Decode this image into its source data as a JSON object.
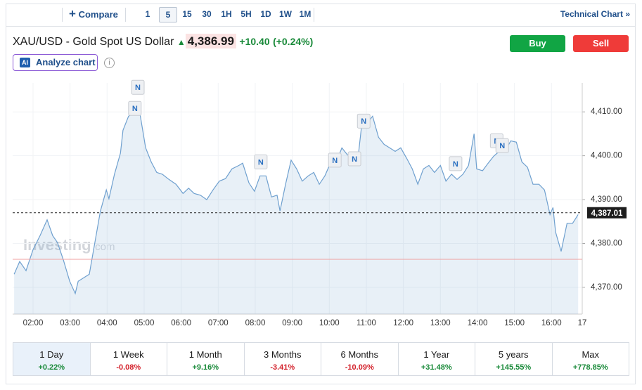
{
  "toolbar": {
    "compare": "Compare",
    "intervals": [
      "1",
      "5",
      "15",
      "30",
      "1H",
      "5H",
      "1D",
      "1W",
      "1M"
    ],
    "selected_interval": "5",
    "technical_chart": "Technical Chart",
    "technical_chart_arrow": "»"
  },
  "header": {
    "title": "XAU/USD - Gold Spot US Dollar",
    "price": "4,386.99",
    "change": "+10.40",
    "change_percent": "(+0.24%)",
    "buy": "Buy",
    "sell": "Sell",
    "ai_badge": "AI",
    "analyze": "Analyze chart",
    "info": "i"
  },
  "chart_data": {
    "type": "area",
    "watermark": "Investing",
    "watermark_suffix": ".com",
    "x": [
      1.49,
      1.64,
      1.81,
      2.0,
      2.19,
      2.38,
      2.53,
      2.66,
      2.82,
      2.99,
      3.14,
      3.22,
      3.37,
      3.52,
      3.67,
      3.82,
      3.98,
      4.05,
      4.2,
      4.36,
      4.43,
      4.58,
      4.73,
      4.89,
      5.04,
      5.19,
      5.34,
      5.49,
      5.67,
      5.86,
      6.05,
      6.2,
      6.35,
      6.52,
      6.69,
      6.86,
      7.03,
      7.2,
      7.37,
      7.56,
      7.66,
      7.83,
      7.98,
      8.13,
      8.29,
      8.44,
      8.59,
      8.67,
      8.82,
      8.97,
      9.12,
      9.27,
      9.43,
      9.58,
      9.73,
      9.88,
      10.03,
      10.19,
      10.34,
      10.49,
      10.64,
      10.79,
      10.87,
      11.02,
      11.17,
      11.33,
      11.48,
      11.63,
      11.78,
      11.93,
      12.09,
      12.24,
      12.39,
      12.54,
      12.69,
      12.84,
      13.0,
      13.15,
      13.3,
      13.45,
      13.61,
      13.76,
      13.91,
      13.98,
      14.14,
      14.29,
      14.44,
      14.59,
      14.74,
      14.9,
      15.05,
      15.2,
      15.35,
      15.5,
      15.66,
      15.81,
      15.96,
      16.04,
      16.11,
      16.26,
      16.42,
      16.57,
      16.72
    ],
    "series": [
      {
        "color": "#6fa0cf",
        "values": [
          4373.0,
          4375.9,
          4373.8,
          4378.6,
          4381.8,
          4385.4,
          4381.8,
          4380.2,
          4376.2,
          4371.4,
          4368.6,
          4371.4,
          4372.2,
          4373.0,
          4380.2,
          4387.4,
          4392.2,
          4390.2,
          4395.8,
          4400.6,
          4405.8,
          4409.0,
          4409.8,
          4409.4,
          4401.8,
          4398.6,
          4396.2,
          4395.8,
          4394.6,
          4393.5,
          4391.4,
          4392.6,
          4391.4,
          4391.0,
          4390.0,
          4392.2,
          4394.2,
          4394.8,
          4397.0,
          4397.8,
          4398.3,
          4393.8,
          4391.9,
          4395.4,
          4395.4,
          4390.6,
          4391.0,
          4387.4,
          4393.5,
          4399.0,
          4397.0,
          4394.2,
          4395.4,
          4396.2,
          4393.5,
          4395.4,
          4398.3,
          4398.6,
          4401.8,
          4400.2,
          4399.4,
          4400.6,
          4406.6,
          4407.4,
          4409.0,
          4404.2,
          4402.6,
          4401.8,
          4401.0,
          4401.8,
          4399.4,
          4397.0,
          4393.5,
          4397.0,
          4397.8,
          4396.2,
          4397.8,
          4394.2,
          4395.8,
          4394.6,
          4395.8,
          4397.8,
          4405.0,
          4397.0,
          4396.6,
          4398.3,
          4399.9,
          4401.0,
          4401.0,
          4403.4,
          4403.1,
          4398.6,
          4397.4,
          4393.5,
          4393.5,
          4392.2,
          4386.6,
          4388.2,
          4382.6,
          4378.2,
          4384.6,
          4384.6,
          4386.6
        ]
      }
    ],
    "xlim": [
      1.45,
      16.83
    ],
    "ylim": [
      4363.9,
      4416.6
    ],
    "xticks": [
      {
        "value": 2,
        "label": "02:00"
      },
      {
        "value": 3,
        "label": "03:00"
      },
      {
        "value": 4,
        "label": "04:00"
      },
      {
        "value": 5,
        "label": "05:00"
      },
      {
        "value": 6,
        "label": "06:00"
      },
      {
        "value": 7,
        "label": "07:00"
      },
      {
        "value": 8,
        "label": "08:00"
      },
      {
        "value": 9,
        "label": "09:00"
      },
      {
        "value": 10,
        "label": "10:00"
      },
      {
        "value": 11,
        "label": "11:00"
      },
      {
        "value": 12,
        "label": "12:00"
      },
      {
        "value": 13,
        "label": "13:00"
      },
      {
        "value": 14,
        "label": "14:00"
      },
      {
        "value": 15,
        "label": "15:00"
      },
      {
        "value": 16,
        "label": "16:00"
      },
      17
    ],
    "yticks": [
      {
        "value": 4370,
        "label": "4,370.00"
      },
      {
        "value": 4380,
        "label": "4,380.00"
      },
      {
        "value": 4390,
        "label": "4,390.00"
      },
      {
        "value": 4400,
        "label": "4,400.00"
      },
      {
        "value": 4410,
        "label": "4,410.00"
      }
    ],
    "grid": true,
    "current_price": {
      "value": 4387.01,
      "label": "4,387.01"
    },
    "previous_close": 4376.4,
    "annotations": [
      {
        "label": "N",
        "x": 4.83,
        "y": 4415.6
      },
      {
        "label": "N",
        "x": 4.75,
        "y": 4410.8
      },
      {
        "label": "N",
        "x": 8.15,
        "y": 4398.6
      },
      {
        "label": "N",
        "x": 10.15,
        "y": 4399.0
      },
      {
        "label": "N",
        "x": 10.68,
        "y": 4399.3
      },
      {
        "label": "N",
        "x": 10.93,
        "y": 4407.9
      },
      {
        "label": "N",
        "x": 13.41,
        "y": 4398.2
      },
      {
        "label": "N",
        "x": 14.52,
        "y": 4403.4
      },
      {
        "label": "N",
        "x": 14.67,
        "y": 4402.3
      }
    ]
  },
  "periods": [
    {
      "name": "1 Day",
      "change": "+0.22%"
    },
    {
      "name": "1 Week",
      "change": "-0.08%"
    },
    {
      "name": "1 Month",
      "change": "+9.16%"
    },
    {
      "name": "3 Months",
      "change": "-3.41%"
    },
    {
      "name": "6 Months",
      "change": "-10.09%"
    },
    {
      "name": "1 Year",
      "change": "+31.48%"
    },
    {
      "name": "5 years",
      "change": "+145.55%"
    },
    {
      "name": "Max",
      "change": "+778.85%"
    }
  ],
  "selected_period": "1 Day"
}
